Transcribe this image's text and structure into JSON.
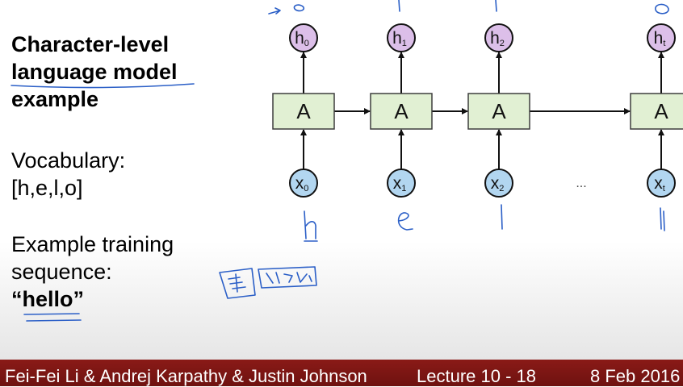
{
  "slide": {
    "title_lines": [
      "Character-level",
      "language model",
      "example"
    ],
    "vocab_label": "Vocabulary:",
    "vocab_value": "[h,e,l,o]",
    "example_lines": [
      "Example training",
      "sequence:"
    ],
    "example_value": "“hello”"
  },
  "diagram": {
    "cell_label": "A",
    "outputs": [
      {
        "base": "h",
        "sub": "0"
      },
      {
        "base": "h",
        "sub": "1"
      },
      {
        "base": "h",
        "sub": "2"
      },
      {
        "base": "h",
        "sub": "t"
      }
    ],
    "inputs": [
      {
        "base": "x",
        "sub": "0"
      },
      {
        "base": "x",
        "sub": "1"
      },
      {
        "base": "x",
        "sub": "2"
      },
      {
        "base": "x",
        "sub": "t"
      }
    ],
    "ellipsis": "...",
    "handwritten_inputs": [
      "h",
      "e",
      "l",
      "l"
    ],
    "colors": {
      "cell_fill": "#e1f0d3",
      "cell_stroke": "#3d3d3d",
      "output_fill": "#dcbfe9",
      "input_fill": "#b2d6f0",
      "ink": "#2b5fc7"
    }
  },
  "footer": {
    "authors": "Fei-Fei Li & Andrej Karpathy & Justin Johnson",
    "lecture": "Lecture 10 -  18",
    "date": "8 Feb 2016",
    "bar_color": "#7d1613"
  }
}
